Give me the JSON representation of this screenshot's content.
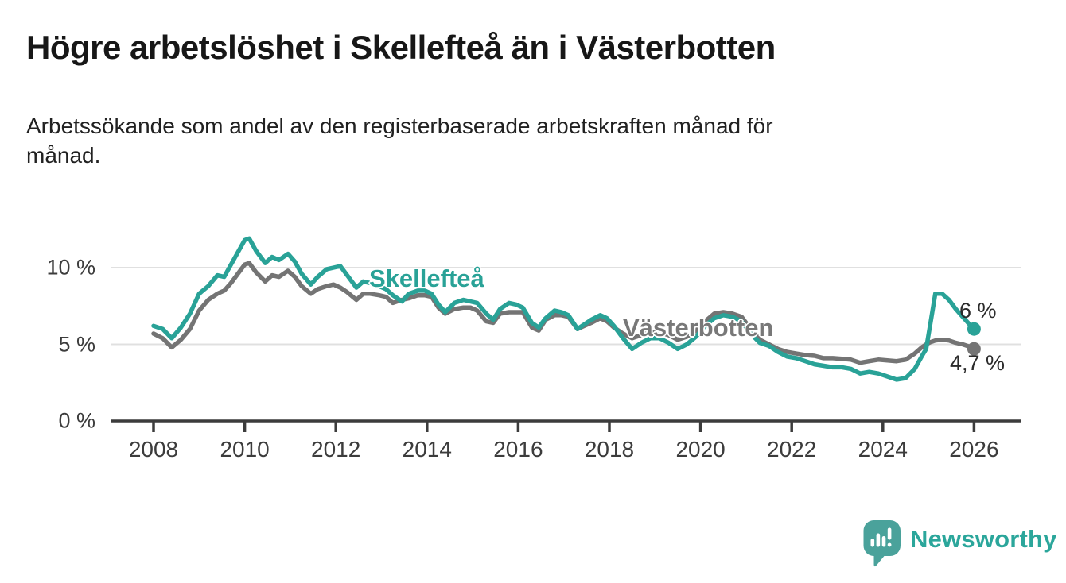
{
  "header": {
    "title": "Högre arbetslöshet i Skellefteå än i Västerbotten",
    "subtitle_line1": "Arbetssökande som andel av den registerbaserade arbetskraften månad för",
    "subtitle_line2": "månad."
  },
  "chart_data": {
    "type": "line",
    "title": "Högre arbetslöshet i Skellefteå än i Västerbotten",
    "subtitle": "Arbetssökande som andel av den registerbaserade arbetskraften månad för månad.",
    "xlabel": "",
    "ylabel": "",
    "grid": "horizontal-only",
    "legend_position": "inline-labels",
    "xlim": [
      2007.1,
      2027.0
    ],
    "ylim": [
      0,
      12.7
    ],
    "y_ticks": [
      {
        "value": 0,
        "label": "0 %"
      },
      {
        "value": 5,
        "label": "5 %"
      },
      {
        "value": 10,
        "label": "10 %"
      }
    ],
    "x_ticks": [
      {
        "value": 2008,
        "label": "2008"
      },
      {
        "value": 2010,
        "label": "2010"
      },
      {
        "value": 2012,
        "label": "2012"
      },
      {
        "value": 2014,
        "label": "2014"
      },
      {
        "value": 2016,
        "label": "2016"
      },
      {
        "value": 2018,
        "label": "2018"
      },
      {
        "value": 2020,
        "label": "2020"
      },
      {
        "value": 2022,
        "label": "2022"
      },
      {
        "value": 2024,
        "label": "2024"
      },
      {
        "value": 2026,
        "label": "2026"
      }
    ],
    "x": [
      2008.0,
      2008.2,
      2008.4,
      2008.6,
      2008.8,
      2009.0,
      2009.2,
      2009.4,
      2009.55,
      2009.7,
      2009.85,
      2010.0,
      2010.1,
      2010.25,
      2010.45,
      2010.6,
      2010.75,
      2010.95,
      2011.1,
      2011.25,
      2011.45,
      2011.6,
      2011.8,
      2011.95,
      2012.1,
      2012.25,
      2012.45,
      2012.6,
      2012.75,
      2012.95,
      2013.1,
      2013.25,
      2013.45,
      2013.6,
      2013.8,
      2013.95,
      2014.1,
      2014.25,
      2014.4,
      2014.6,
      2014.8,
      2014.95,
      2015.1,
      2015.3,
      2015.45,
      2015.6,
      2015.8,
      2015.95,
      2016.1,
      2016.3,
      2016.45,
      2016.6,
      2016.8,
      2016.95,
      2017.1,
      2017.3,
      2017.45,
      2017.6,
      2017.8,
      2017.95,
      2018.1,
      2018.3,
      2018.5,
      2018.7,
      2018.9,
      2019.1,
      2019.3,
      2019.5,
      2019.7,
      2019.9,
      2020.1,
      2020.3,
      2020.5,
      2020.7,
      2020.9,
      2021.1,
      2021.3,
      2021.5,
      2021.7,
      2021.9,
      2022.1,
      2022.3,
      2022.5,
      2022.7,
      2022.9,
      2023.1,
      2023.3,
      2023.5,
      2023.7,
      2023.9,
      2024.1,
      2024.3,
      2024.5,
      2024.7,
      2024.85,
      2024.95,
      2025.05,
      2025.15,
      2025.3,
      2025.45,
      2025.6,
      2025.75,
      2025.9,
      2026.0
    ],
    "series": [
      {
        "name": "Skellefteå",
        "color": "#29a297",
        "end_label": "6 %",
        "end_value": 6.0,
        "values": [
          6.2,
          6.0,
          5.4,
          6.1,
          7.0,
          8.3,
          8.8,
          9.5,
          9.4,
          10.2,
          11.0,
          11.8,
          11.9,
          11.1,
          10.3,
          10.7,
          10.5,
          10.9,
          10.4,
          9.6,
          8.9,
          9.4,
          9.9,
          10.0,
          10.1,
          9.5,
          8.7,
          9.1,
          9.0,
          8.8,
          8.6,
          8.2,
          7.8,
          8.3,
          8.5,
          8.5,
          8.3,
          7.6,
          7.1,
          7.7,
          7.9,
          7.8,
          7.7,
          7.0,
          6.6,
          7.3,
          7.7,
          7.6,
          7.4,
          6.4,
          6.1,
          6.7,
          7.2,
          7.1,
          6.9,
          6.0,
          6.3,
          6.6,
          6.9,
          6.7,
          6.2,
          5.4,
          4.7,
          5.1,
          5.4,
          5.4,
          5.1,
          4.7,
          5.0,
          5.5,
          6.2,
          6.7,
          6.9,
          6.8,
          6.5,
          5.7,
          5.1,
          4.9,
          4.5,
          4.2,
          4.1,
          3.9,
          3.7,
          3.6,
          3.5,
          3.5,
          3.4,
          3.1,
          3.2,
          3.1,
          2.9,
          2.7,
          2.8,
          3.4,
          4.2,
          4.7,
          6.5,
          8.3,
          8.3,
          7.9,
          7.3,
          6.8,
          6.3,
          6.0
        ]
      },
      {
        "name": "Västerbotten",
        "color": "#747474",
        "end_label": "4,7 %",
        "end_value": 4.7,
        "values": [
          5.7,
          5.4,
          4.8,
          5.3,
          6.0,
          7.2,
          7.9,
          8.3,
          8.5,
          9.0,
          9.6,
          10.2,
          10.3,
          9.7,
          9.1,
          9.5,
          9.4,
          9.8,
          9.4,
          8.8,
          8.3,
          8.6,
          8.8,
          8.9,
          8.7,
          8.4,
          7.9,
          8.3,
          8.3,
          8.2,
          8.1,
          7.7,
          7.9,
          8.0,
          8.2,
          8.2,
          8.1,
          7.4,
          7.0,
          7.3,
          7.4,
          7.4,
          7.2,
          6.5,
          6.4,
          7.0,
          7.1,
          7.1,
          7.1,
          6.1,
          5.9,
          6.6,
          6.9,
          6.9,
          6.8,
          6.0,
          6.2,
          6.4,
          6.7,
          6.5,
          6.1,
          5.7,
          5.4,
          5.6,
          5.8,
          5.8,
          5.6,
          5.3,
          5.5,
          5.9,
          6.5,
          7.0,
          7.1,
          7.0,
          6.8,
          6.0,
          5.3,
          5.0,
          4.7,
          4.5,
          4.4,
          4.3,
          4.25,
          4.1,
          4.1,
          4.05,
          4.0,
          3.8,
          3.9,
          4.0,
          3.95,
          3.9,
          4.0,
          4.4,
          4.8,
          5.0,
          5.15,
          5.25,
          5.3,
          5.25,
          5.1,
          5.0,
          4.85,
          4.7
        ]
      }
    ],
    "annotations": [
      {
        "text": "6 %",
        "series": "Skellefteå"
      },
      {
        "text": "4,7 %",
        "series": "Västerbotten"
      }
    ],
    "colors": {
      "grid": "#e0e0e0",
      "axis": "#3c3c3c",
      "tick_text": "#3c3c3c",
      "annotation_text": "#2b2b2b"
    }
  },
  "footer": {
    "brand": "Newsworthy",
    "logo_icon": "newsworthy-bubble-chart-icon",
    "logo_color": "#4aa29b"
  }
}
